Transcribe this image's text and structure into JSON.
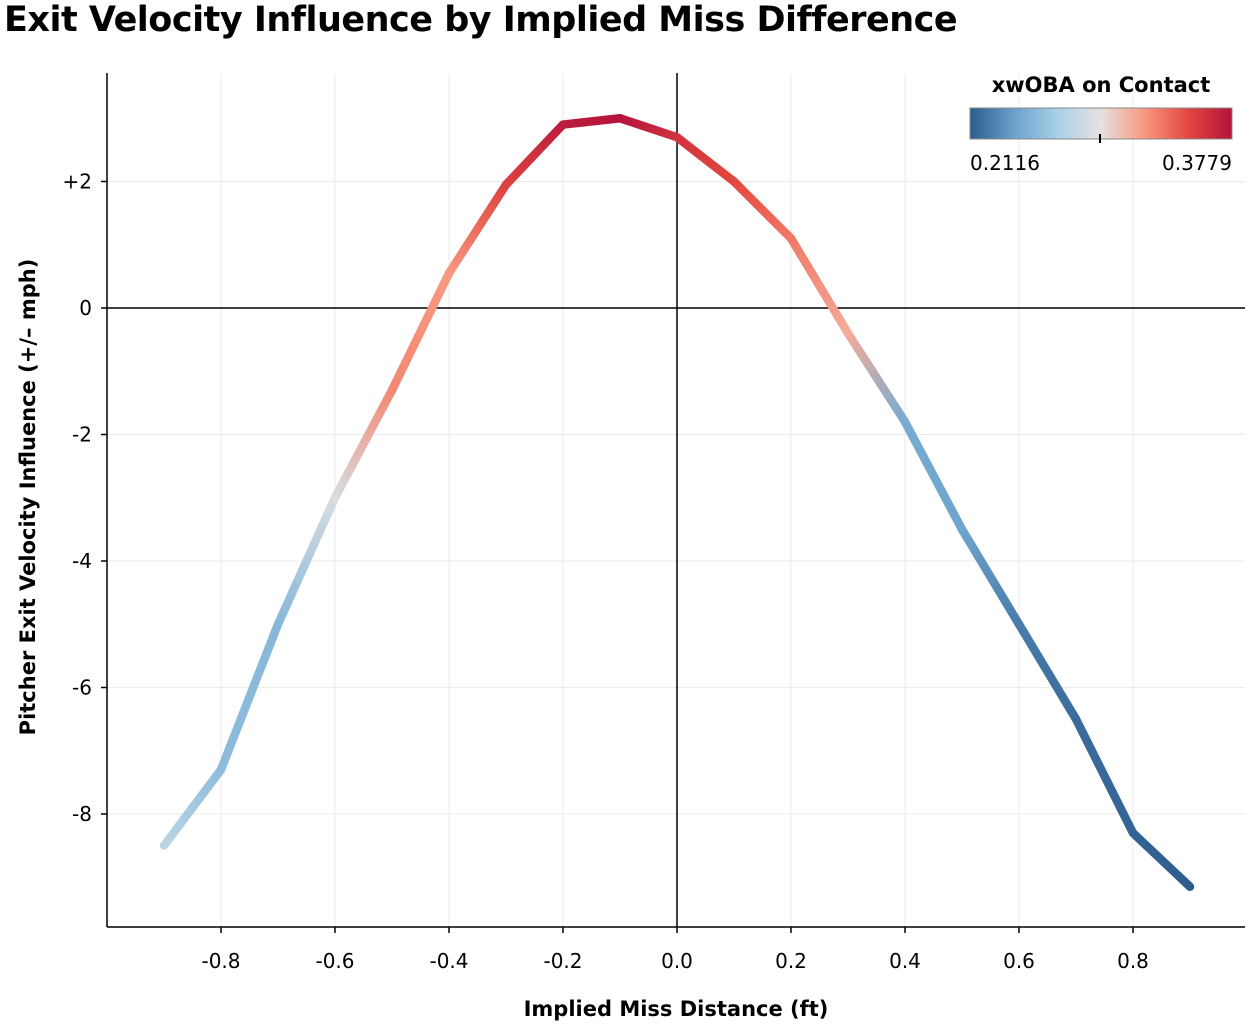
{
  "chart_data": {
    "type": "line",
    "title": "Exit Velocity Influence by Implied Miss Difference",
    "xlabel": "Implied Miss Distance (ft)",
    "ylabel": "Pitcher Exit Velocity Influence (+/– mph)",
    "xlim": [
      -1.0,
      1.0
    ],
    "ylim": [
      -9.75,
      3.75
    ],
    "x_ticks": [
      -0.8,
      -0.6,
      -0.4,
      -0.2,
      0.0,
      0.2,
      0.4,
      0.6,
      0.8
    ],
    "x_tick_labels": [
      "-0.8",
      "-0.6",
      "-0.4",
      "-0.2",
      "0.0",
      "0.2",
      "0.4",
      "0.6",
      "0.8"
    ],
    "y_ticks": [
      2,
      0,
      -2,
      -4,
      -6,
      -8
    ],
    "y_tick_labels": [
      "+2",
      "0",
      "-2",
      "-4",
      "-6",
      "-8"
    ],
    "grid": true,
    "reference_lines": {
      "x": 0,
      "y": 0
    },
    "series": [
      {
        "x": [
          -0.9,
          -0.8,
          -0.7,
          -0.6,
          -0.5,
          -0.4,
          -0.3,
          -0.2,
          -0.1,
          0.0,
          0.1,
          0.2,
          0.3,
          0.4,
          0.5,
          0.6,
          0.7,
          0.8,
          0.9
        ],
        "y": [
          -8.5,
          -7.3,
          -5.0,
          -3.0,
          -1.3,
          0.55,
          1.95,
          2.9,
          3.0,
          2.7,
          2.0,
          1.1,
          -0.4,
          -1.8,
          -3.5,
          -5.0,
          -6.5,
          -8.3,
          -9.15
        ],
        "color_value": [
          0.275,
          0.255,
          0.252,
          0.288,
          0.328,
          0.322,
          0.353,
          0.373,
          0.378,
          0.36,
          0.35,
          0.333,
          0.315,
          0.245,
          0.241,
          0.224,
          0.218,
          0.215,
          0.2116
        ]
      }
    ],
    "legend": {
      "title": "xwOBA on Contact",
      "min_label": "0.2116",
      "max_label": "0.3779",
      "min": 0.2116,
      "max": 0.3779,
      "colors": [
        "#2d5c8d",
        "#6aa1cc",
        "#a9d0e8",
        "#e6e1df",
        "#f8987f",
        "#e3463f",
        "#b3143b"
      ],
      "placement": "top-right"
    }
  }
}
